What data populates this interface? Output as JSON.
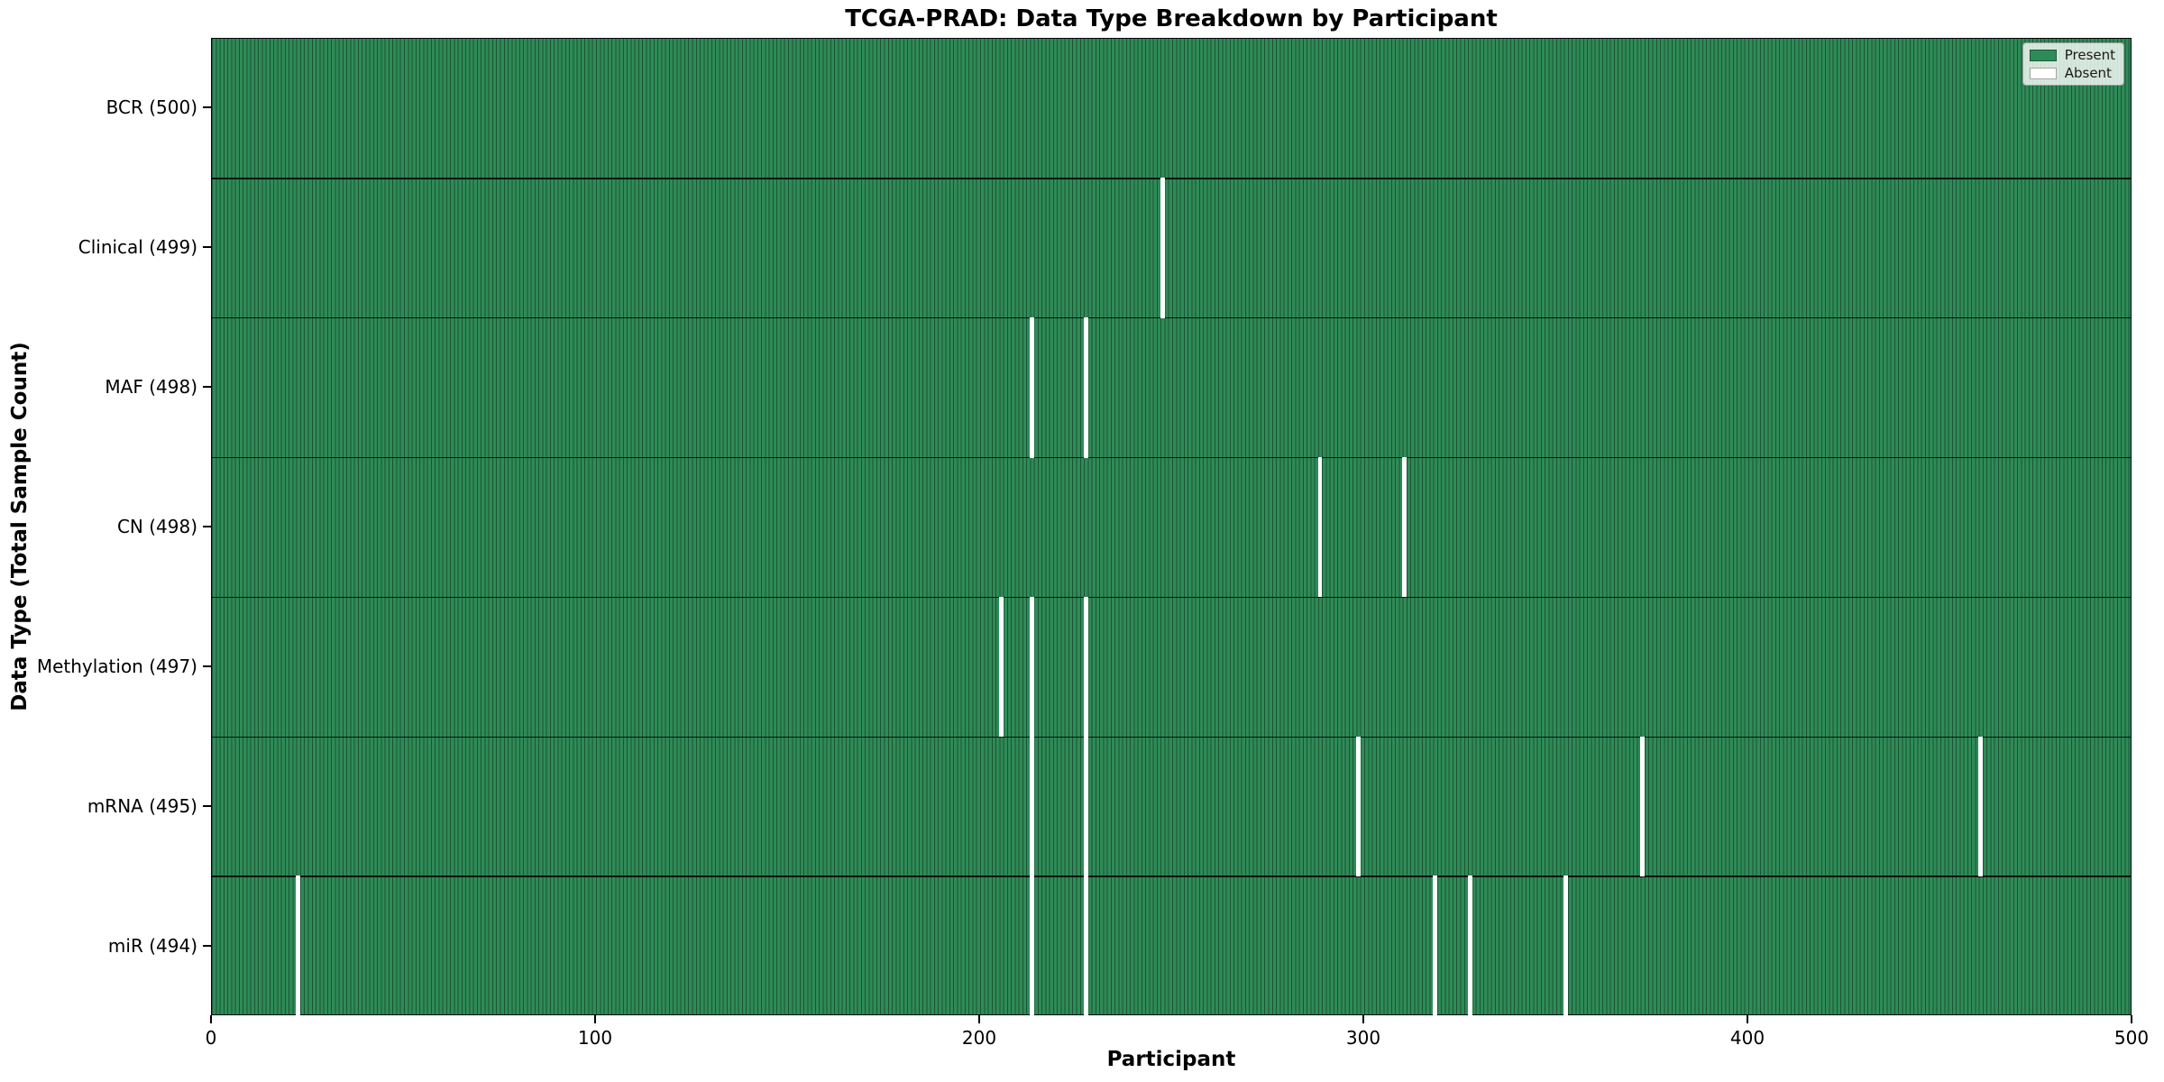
{
  "chart_data": {
    "type": "heatmap",
    "title": "TCGA-PRAD: Data Type Breakdown by Participant",
    "xlabel": "Participant",
    "ylabel": "Data Type (Total Sample Count)",
    "xlim": [
      0,
      500
    ],
    "n_participants": 500,
    "x_ticks": [
      0,
      100,
      200,
      300,
      400,
      500
    ],
    "grid": false,
    "legend_position": "upper right",
    "legend": [
      {
        "label": "Present",
        "color": "#2e8b57"
      },
      {
        "label": "Absent",
        "color": "#ffffff"
      }
    ],
    "colors": {
      "present": "#2e8b57",
      "absent": "#ffffff",
      "cell_edge": "#1d5334"
    },
    "rows": [
      {
        "label": "BCR (500)",
        "data_type": "BCR",
        "total": 500,
        "absent_participants": []
      },
      {
        "label": "Clinical (499)",
        "data_type": "Clinical",
        "total": 499,
        "absent_participants": [
          247
        ]
      },
      {
        "label": "MAF (498)",
        "data_type": "MAF",
        "total": 498,
        "absent_participants": [
          213,
          227
        ]
      },
      {
        "label": "CN (498)",
        "data_type": "CN",
        "total": 498,
        "absent_participants": [
          288,
          310
        ]
      },
      {
        "label": "Methylation (497)",
        "data_type": "Methylation",
        "total": 497,
        "absent_participants": [
          205,
          213,
          227
        ]
      },
      {
        "label": "mRNA (495)",
        "data_type": "mRNA",
        "total": 495,
        "absent_participants": [
          213,
          227,
          298,
          372,
          460
        ]
      },
      {
        "label": "miR (494)",
        "data_type": "miR",
        "total": 494,
        "absent_participants": [
          22,
          213,
          227,
          318,
          327,
          352
        ]
      }
    ]
  }
}
